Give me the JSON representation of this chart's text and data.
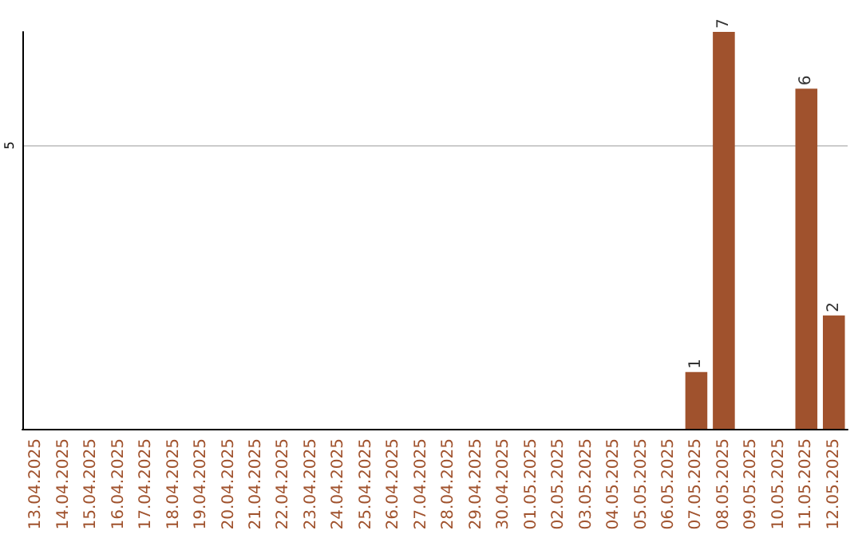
{
  "chart_data": {
    "type": "bar",
    "categories": [
      "13.04.2025",
      "14.04.2025",
      "15.04.2025",
      "16.04.2025",
      "17.04.2025",
      "18.04.2025",
      "19.04.2025",
      "20.04.2025",
      "21.04.2025",
      "22.04.2025",
      "23.04.2025",
      "24.04.2025",
      "25.04.2025",
      "26.04.2025",
      "27.04.2025",
      "28.04.2025",
      "29.04.2025",
      "30.04.2025",
      "01.05.2025",
      "02.05.2025",
      "03.05.2025",
      "04.05.2025",
      "05.05.2025",
      "06.05.2025",
      "07.05.2025",
      "08.05.2025",
      "09.05.2025",
      "10.05.2025",
      "11.05.2025",
      "12.05.2025"
    ],
    "values": [
      null,
      null,
      null,
      null,
      null,
      null,
      null,
      null,
      null,
      null,
      null,
      null,
      null,
      null,
      null,
      null,
      null,
      null,
      null,
      null,
      null,
      null,
      null,
      null,
      1,
      7,
      null,
      null,
      6,
      2
    ],
    "value_labels": [
      null,
      null,
      null,
      null,
      null,
      null,
      null,
      null,
      null,
      null,
      null,
      null,
      null,
      null,
      null,
      null,
      null,
      null,
      null,
      null,
      null,
      null,
      null,
      null,
      "1",
      "7",
      null,
      null,
      "6",
      "2"
    ],
    "color": "#a0522d",
    "ylim": [
      0,
      7
    ],
    "yticks": [
      5
    ],
    "grid": "y"
  }
}
